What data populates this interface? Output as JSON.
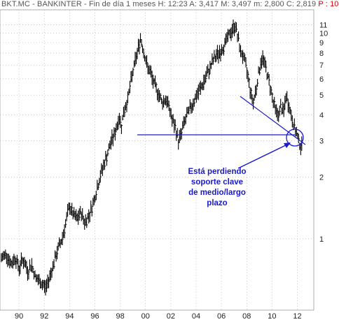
{
  "header": {
    "text": "BKT.MC - BANKINTER - Fin de día 1 meses  H: 12:23  A: 3,417  M: 3,497  m: 2,800  C: 2,819",
    "red_text": "P : 10"
  },
  "colors": {
    "price": "#000000",
    "trendline": "#1a1acc",
    "annotation": "#1a1acc",
    "grid": "#9a9a9a",
    "header_red": "#d40000"
  },
  "chart_data": {
    "type": "line",
    "title": "BKT.MC - BANKINTER - Fin de día 1 meses",
    "scale": "log",
    "grid": true,
    "ylim": [
      0.45,
      13
    ],
    "xlim": [
      1988.5,
      2013.3
    ],
    "y_ticks": [
      1,
      2,
      3,
      4,
      5,
      6,
      7,
      8,
      9,
      10,
      11
    ],
    "x_ticks": [
      1990,
      1992,
      1994,
      1996,
      1998,
      2000,
      2002,
      2004,
      2006,
      2008,
      2010,
      2012
    ],
    "x_tick_labels": [
      "90",
      "92",
      "94",
      "96",
      "98",
      "00",
      "02",
      "04",
      "06",
      "08",
      "10",
      "12"
    ],
    "series": [
      {
        "x": [
          1988.6,
          1989.0,
          1989.4,
          1989.7,
          1990.0,
          1990.3,
          1990.7,
          1991.0,
          1991.3,
          1991.6,
          1991.9,
          1992.1,
          1992.3,
          1992.5,
          1992.8,
          1993.1,
          1993.4,
          1993.7,
          1994.0,
          1994.3,
          1994.6,
          1994.9,
          1995.2,
          1995.5,
          1995.8,
          1996.1,
          1996.4,
          1996.7,
          1997.0,
          1997.3,
          1997.6,
          1997.9,
          1998.1,
          1998.3,
          1998.6,
          1998.8,
          1999.0,
          1999.3,
          1999.6,
          1999.9,
          2000.1,
          2000.4,
          2000.7,
          2001.0,
          2001.3,
          2001.6,
          2001.9,
          2002.1,
          2002.4,
          2002.6,
          2002.8,
          2003.0,
          2003.3,
          2003.6,
          2003.9,
          2004.2,
          2004.5,
          2004.8,
          2005.1,
          2005.4,
          2005.7,
          2006.0,
          2006.3,
          2006.6,
          2006.9,
          2007.1,
          2007.3,
          2007.5,
          2007.7,
          2007.9,
          2008.1,
          2008.3,
          2008.5,
          2008.7,
          2008.9,
          2009.1,
          2009.3,
          2009.5,
          2009.7,
          2009.9,
          2010.1,
          2010.3,
          2010.5,
          2010.7,
          2010.9,
          2011.1,
          2011.3,
          2011.5,
          2011.7,
          2011.9,
          2012.1,
          2012.2,
          2012.35
        ],
        "y": [
          0.8,
          0.85,
          0.75,
          0.82,
          0.72,
          0.8,
          0.7,
          0.75,
          0.65,
          0.62,
          0.6,
          0.58,
          0.62,
          0.68,
          0.78,
          0.9,
          1.0,
          1.2,
          1.45,
          1.3,
          1.25,
          1.35,
          1.2,
          1.3,
          1.45,
          1.7,
          2.0,
          2.3,
          2.6,
          3.0,
          3.3,
          3.9,
          3.6,
          4.2,
          4.8,
          5.6,
          6.5,
          7.8,
          9.5,
          8.0,
          7.0,
          6.4,
          5.6,
          5.2,
          4.6,
          4.8,
          4.3,
          3.8,
          3.4,
          3.0,
          3.2,
          3.6,
          4.0,
          4.4,
          4.8,
          5.2,
          5.6,
          6.2,
          6.8,
          7.5,
          7.9,
          8.3,
          9.0,
          9.8,
          10.5,
          11.0,
          9.5,
          8.2,
          7.8,
          7.0,
          6.2,
          5.2,
          4.6,
          5.2,
          6.2,
          7.2,
          7.6,
          6.8,
          6.0,
          5.4,
          4.6,
          4.2,
          4.0,
          4.4,
          4.1,
          4.9,
          4.6,
          4.0,
          3.6,
          3.3,
          3.0,
          2.9,
          2.819
        ]
      }
    ],
    "annotations": [
      {
        "lines": [
          "Está perdiendo",
          "soporte clave",
          "de medio/largo",
          "plazo"
        ]
      }
    ]
  }
}
